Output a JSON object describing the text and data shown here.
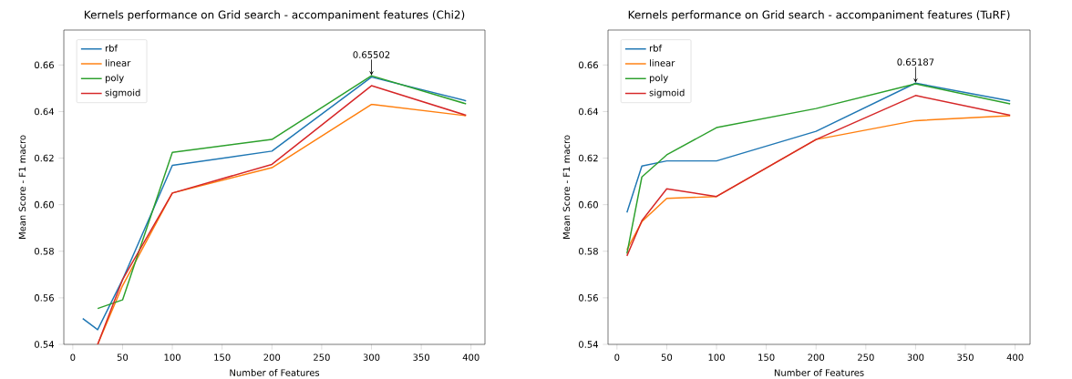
{
  "chart_data": [
    {
      "type": "line",
      "title": "Kernels performance on Grid search - accompaniment features (Chi2)",
      "xlabel": "Number of Features",
      "ylabel": "Mean Score - F1 macro",
      "x": [
        10,
        25,
        50,
        100,
        200,
        300,
        395
      ],
      "series": [
        {
          "name": "rbf",
          "color": "#1f77b4",
          "values": [
            0.5511,
            0.5463,
            0.5678,
            0.6169,
            0.623,
            0.6548,
            0.6446
          ]
        },
        {
          "name": "linear",
          "color": "#ff7f0e",
          "values": [
            null,
            0.54,
            0.5652,
            0.605,
            0.6159,
            0.6431,
            0.6382
          ]
        },
        {
          "name": "poly",
          "color": "#2ca02c",
          "values": [
            null,
            0.5554,
            0.5591,
            0.6225,
            0.628,
            0.6554,
            0.6433
          ]
        },
        {
          "name": "sigmoid",
          "color": "#d62728",
          "values": [
            null,
            0.54,
            0.5678,
            0.605,
            0.6173,
            0.6511,
            0.6384
          ]
        }
      ],
      "xlim": [
        -9,
        414
      ],
      "ylim": [
        0.54,
        0.675
      ],
      "xticks": [
        0,
        50,
        100,
        150,
        200,
        250,
        300,
        350,
        400
      ],
      "yticks": [
        {
          "value": 0.54,
          "label": "0.54"
        },
        {
          "value": 0.56,
          "label": "0.56"
        },
        {
          "value": 0.58,
          "label": "0.58"
        },
        {
          "value": 0.6,
          "label": "0.60"
        },
        {
          "value": 0.62,
          "label": "0.62"
        },
        {
          "value": 0.64,
          "label": "0.64"
        },
        {
          "value": 0.66,
          "label": "0.66"
        }
      ],
      "annotations": [
        {
          "text": "0.65502",
          "x": 300,
          "y": 0.65502
        }
      ],
      "legend": "top left",
      "grid": false
    },
    {
      "type": "line",
      "title": "Kernels performance on Grid search - accompaniment features (TuRF)",
      "xlabel": "Number of Features",
      "ylabel": "Mean Score - F1 macro",
      "x": [
        10,
        25,
        50,
        100,
        200,
        300,
        395
      ],
      "series": [
        {
          "name": "rbf",
          "color": "#1f77b4",
          "values": [
            0.5966,
            0.6166,
            0.6188,
            0.6188,
            0.6315,
            0.6522,
            0.6446
          ]
        },
        {
          "name": "linear",
          "color": "#ff7f0e",
          "values": [
            0.5807,
            0.5927,
            0.6027,
            0.6035,
            0.628,
            0.6361,
            0.6382
          ]
        },
        {
          "name": "poly",
          "color": "#2ca02c",
          "values": [
            0.579,
            0.6119,
            0.6214,
            0.6331,
            0.6413,
            0.6519,
            0.6433
          ]
        },
        {
          "name": "sigmoid",
          "color": "#d62728",
          "values": [
            0.578,
            0.5931,
            0.6068,
            0.6035,
            0.628,
            0.6469,
            0.6384
          ]
        }
      ],
      "xlim": [
        -9,
        415
      ],
      "ylim": [
        0.54,
        0.675
      ],
      "xticks": [
        0,
        50,
        100,
        150,
        200,
        250,
        300,
        350,
        400
      ],
      "yticks": [
        {
          "value": 0.54,
          "label": "0.54"
        },
        {
          "value": 0.56,
          "label": "0.56"
        },
        {
          "value": 0.58,
          "label": "0.58"
        },
        {
          "value": 0.6,
          "label": "0.60"
        },
        {
          "value": 0.62,
          "label": "0.62"
        },
        {
          "value": 0.64,
          "label": "0.64"
        },
        {
          "value": 0.66,
          "label": "0.66"
        }
      ],
      "annotations": [
        {
          "text": "0.65187",
          "x": 300,
          "y": 0.65187
        }
      ],
      "legend": "top left",
      "grid": false
    }
  ]
}
